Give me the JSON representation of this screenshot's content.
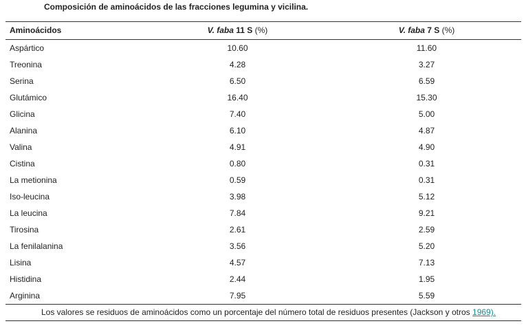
{
  "caption": "Composición de aminoácidos de las fracciones legumina y vicilina.",
  "header": {
    "col1": "Aminoácidos",
    "col2_species": "V. faba",
    "col2_fraction": "11 S",
    "col2_unit": "(%)",
    "col3_species": "V. faba",
    "col3_fraction": "7 S",
    "col3_unit": "(%)"
  },
  "rows": [
    {
      "name": "Aspártico",
      "v11s": "10.60",
      "v7s": "11.60"
    },
    {
      "name": "Treonina",
      "v11s": "4.28",
      "v7s": "3.27"
    },
    {
      "name": "Serina",
      "v11s": "6.50",
      "v7s": "6.59"
    },
    {
      "name": "Glutámico",
      "v11s": "16.40",
      "v7s": "15.30"
    },
    {
      "name": "Glicina",
      "v11s": "7.40",
      "v7s": "5.00"
    },
    {
      "name": "Alanina",
      "v11s": "6.10",
      "v7s": "4.87"
    },
    {
      "name": "Valina",
      "v11s": "4.91",
      "v7s": "4.90"
    },
    {
      "name": "Cistina",
      "v11s": "0.80",
      "v7s": "0.31"
    },
    {
      "name": "La metionina",
      "v11s": "0.59",
      "v7s": "0.31"
    },
    {
      "name": "Iso-leucina",
      "v11s": "3.98",
      "v7s": "5.12"
    },
    {
      "name": "La leucina",
      "v11s": "7.84",
      "v7s": "9.21"
    },
    {
      "name": "Tirosina",
      "v11s": "2.61",
      "v7s": "2.59"
    },
    {
      "name": "La fenilalanina",
      "v11s": "3.56",
      "v7s": "5.20"
    },
    {
      "name": "Lisina",
      "v11s": "4.57",
      "v7s": "7.13"
    },
    {
      "name": "Histidina",
      "v11s": "2.44",
      "v7s": "1.95"
    },
    {
      "name": "Arginina",
      "v11s": "7.95",
      "v7s": "5.59"
    }
  ],
  "footnote": {
    "text": "Los valores se residuos de aminoácidos como un porcentaje del número total de residuos presentes (Jackson y otros ",
    "link_text": "1969).",
    "link_color": "#1a8a8a"
  }
}
